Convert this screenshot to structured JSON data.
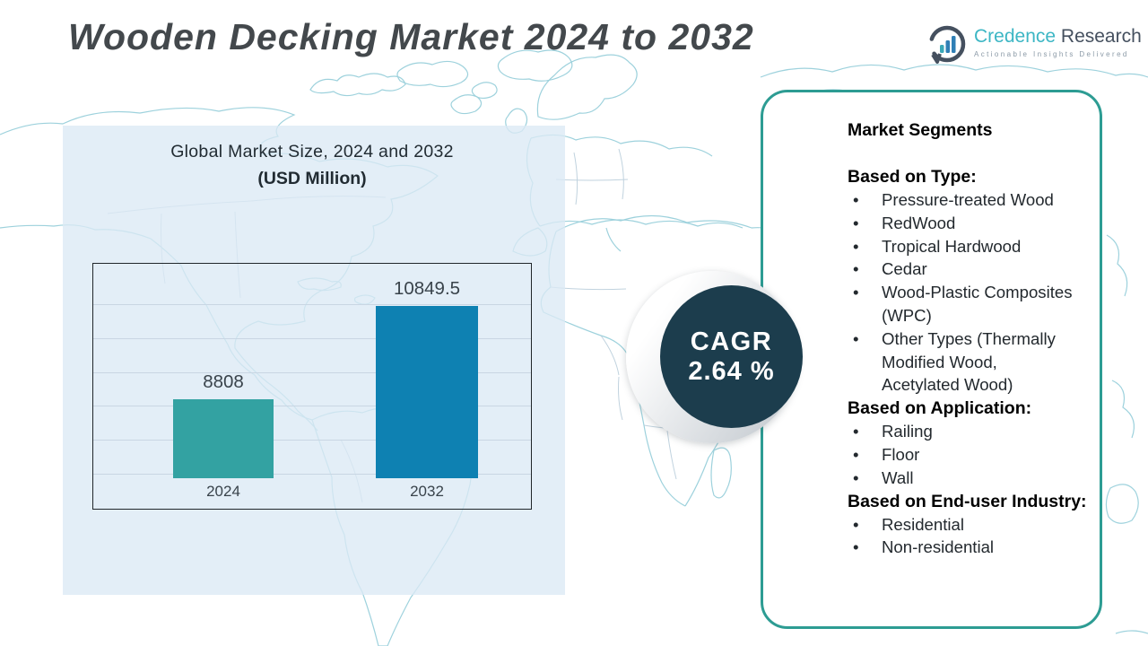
{
  "title": "Wooden Decking Market 2024 to 2032",
  "logo": {
    "brand_primary": "Credence",
    "brand_secondary": "Research",
    "tagline": "Actionable Insights Delivered"
  },
  "chart": {
    "title_line1": "Global Market Size, 2024 and 2032",
    "title_line2": "(USD Million)"
  },
  "chart_data": {
    "type": "bar",
    "title": "Global Market Size, 2024 and 2032 (USD Million)",
    "categories": [
      "2024",
      "2032"
    ],
    "values": [
      8808,
      10849.5
    ],
    "value_labels": [
      "8808",
      "10849.5"
    ],
    "bar_colors": [
      "#33a2a2",
      "#0e81b2"
    ],
    "ylim": [
      7100,
      11700
    ],
    "grid": true,
    "legend": false,
    "xlabel": "",
    "ylabel": ""
  },
  "cagr": {
    "label": "CAGR",
    "display": "2.64 %"
  },
  "segments_panel": {
    "heading": "Market Segments",
    "sections": [
      {
        "heading": "Based on Type:",
        "items": [
          "Pressure-treated Wood",
          "RedWood",
          "Tropical Hardwood",
          "Cedar",
          "Wood-Plastic Composites (WPC)",
          "Other Types (Thermally Modified Wood, Acetylated Wood)"
        ]
      },
      {
        "heading": "Based on Application:",
        "items": [
          "Railing",
          "Floor",
          "Wall"
        ]
      },
      {
        "heading": "Based on End-user Industry:",
        "items": [
          "Residential",
          "Non-residential"
        ]
      }
    ]
  },
  "colors": {
    "bar_2024": "#33a2a2",
    "bar_2032": "#0e81b2",
    "cagr_circle": "#1c3d4d",
    "panel_border": "#2d9c93",
    "backdrop": "#dbe9f5",
    "map_line": "#93cdd9",
    "title_text": "#43484c",
    "brand_teal": "#3cb6c4",
    "brand_dark": "#45505f"
  }
}
